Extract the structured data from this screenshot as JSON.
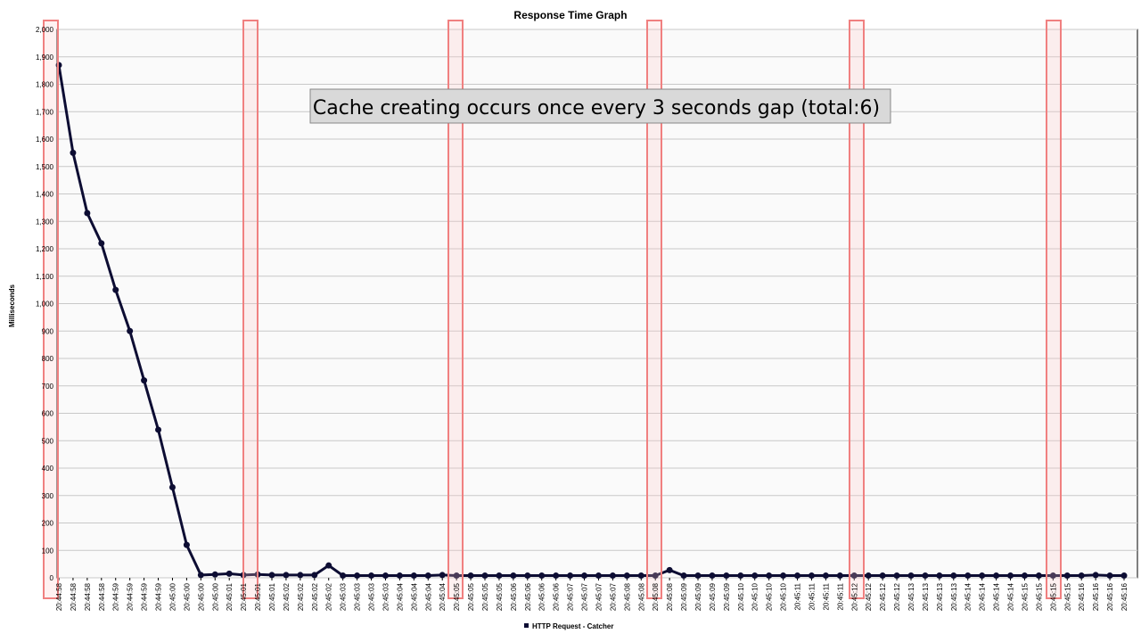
{
  "chart_data": {
    "type": "line",
    "title": "Response Time Graph",
    "y_label": "Milliseconds",
    "annotation": "Cache creating occurs once every 3 seconds gap (total:6)",
    "categories": [
      "20:44:58",
      "20:44:58",
      "20:44:58",
      "20:44:58",
      "20:44:59",
      "20:44:59",
      "20:44:59",
      "20:44:59",
      "20:45:00",
      "20:45:00",
      "20:45:00",
      "20:45:00",
      "20:45:01",
      "20:45:01",
      "20:45:01",
      "20:45:01",
      "20:45:02",
      "20:45:02",
      "20:45:02",
      "20:45:02",
      "20:45:03",
      "20:45:03",
      "20:45:03",
      "20:45:03",
      "20:45:04",
      "20:45:04",
      "20:45:04",
      "20:45:04",
      "20:45:05",
      "20:45:05",
      "20:45:05",
      "20:45:05",
      "20:45:06",
      "20:45:06",
      "20:45:06",
      "20:45:06",
      "20:45:07",
      "20:45:07",
      "20:45:07",
      "20:45:07",
      "20:45:08",
      "20:45:08",
      "20:45:08",
      "20:45:08",
      "20:45:09",
      "20:45:09",
      "20:45:09",
      "20:45:09",
      "20:45:10",
      "20:45:10",
      "20:45:10",
      "20:45:10",
      "20:45:11",
      "20:45:11",
      "20:45:11",
      "20:45:11",
      "20:45:12",
      "20:45:12",
      "20:45:12",
      "20:45:12",
      "20:45:13",
      "20:45:13",
      "20:45:13",
      "20:45:13",
      "20:45:14",
      "20:45:14",
      "20:45:14",
      "20:45:14",
      "20:45:15",
      "20:45:15",
      "20:45:15",
      "20:45:15",
      "20:45:16",
      "20:45:16",
      "20:45:16",
      "20:45:16"
    ],
    "series": [
      {
        "name": "HTTP Request - Catcher",
        "color": "#0d0d33",
        "values": [
          1870,
          1550,
          1330,
          1220,
          1050,
          900,
          720,
          540,
          330,
          120,
          10,
          12,
          15,
          10,
          12,
          10,
          10,
          10,
          10,
          45,
          8,
          8,
          8,
          8,
          8,
          8,
          8,
          10,
          8,
          8,
          8,
          8,
          8,
          8,
          8,
          8,
          8,
          8,
          8,
          8,
          8,
          8,
          8,
          28,
          8,
          8,
          8,
          8,
          8,
          8,
          8,
          8,
          8,
          8,
          8,
          8,
          8,
          8,
          8,
          8,
          8,
          8,
          8,
          8,
          8,
          8,
          8,
          8,
          8,
          8,
          8,
          8,
          8,
          10,
          8,
          8
        ]
      }
    ],
    "ylim": [
      0,
      2000
    ],
    "yticks": [
      0,
      100,
      200,
      300,
      400,
      500,
      600,
      700,
      800,
      900,
      {
        "value": 1000,
        "label": "1,000"
      },
      {
        "value": 1100,
        "label": "1,100"
      },
      {
        "value": 1200,
        "label": "1,200"
      },
      {
        "value": 1300,
        "label": "1,300"
      },
      {
        "value": 1400,
        "label": "1,400"
      },
      {
        "value": 1500,
        "label": "1,500"
      },
      {
        "value": 1600,
        "label": "1,600"
      },
      {
        "value": 1700,
        "label": "1,700"
      },
      {
        "value": 1800,
        "label": "1,800"
      },
      {
        "value": 1900,
        "label": "1,900"
      },
      {
        "value": 2000,
        "label": "2,000"
      }
    ],
    "grid": true
  }
}
